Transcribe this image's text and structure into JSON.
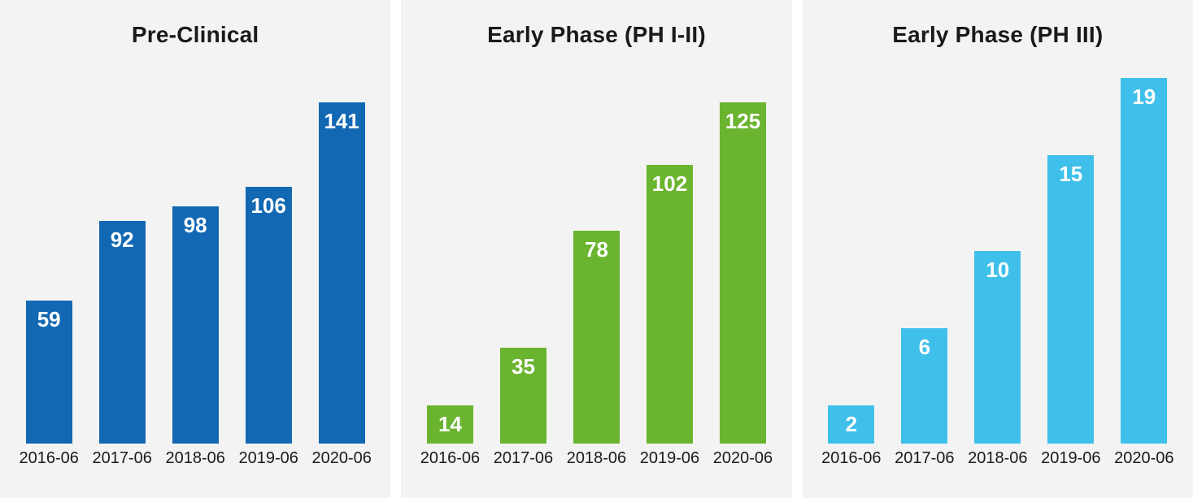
{
  "page": {
    "background_color": "#ffffff",
    "panel_background_color": "#f2f3f2",
    "title_color": "#1a1a1a",
    "tick_color": "#1a1a1a",
    "value_label_color": "#ffffff"
  },
  "chart_data": [
    {
      "type": "bar",
      "title": "Pre-Clinical",
      "categories": [
        "2016-06",
        "2017-06",
        "2018-06",
        "2019-06",
        "2020-06"
      ],
      "values": [
        59,
        92,
        98,
        106,
        141
      ],
      "bar_color": "#1268b3",
      "xlabel": "",
      "ylabel": "",
      "ylim": [
        0,
        151
      ],
      "grid": false,
      "legend": "none",
      "data_labels": "inside-top"
    },
    {
      "type": "bar",
      "title": "Early Phase (PH I-II)",
      "categories": [
        "2016-06",
        "2017-06",
        "2018-06",
        "2019-06",
        "2020-06"
      ],
      "values": [
        14,
        35,
        78,
        102,
        125
      ],
      "bar_color": "#6ab42f",
      "xlabel": "",
      "ylabel": "",
      "ylim": [
        0,
        134
      ],
      "grid": false,
      "legend": "none",
      "data_labels": "inside-top"
    },
    {
      "type": "bar",
      "title": "Early Phase (PH III)",
      "categories": [
        "2016-06",
        "2017-06",
        "2018-06",
        "2019-06",
        "2020-06"
      ],
      "values": [
        2,
        6,
        10,
        15,
        19
      ],
      "bar_color": "#3fc0ea",
      "xlabel": "",
      "ylabel": "",
      "ylim": [
        0,
        19
      ],
      "grid": false,
      "legend": "none",
      "data_labels": "inside-top"
    }
  ]
}
